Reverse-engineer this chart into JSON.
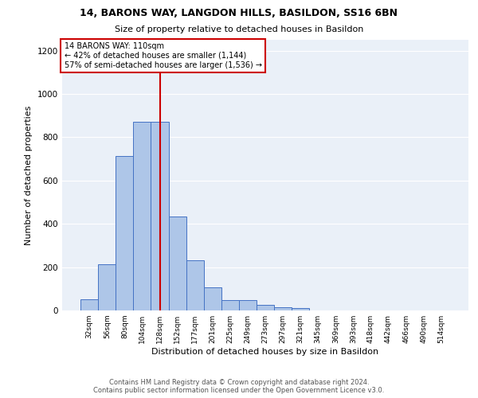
{
  "title1": "14, BARONS WAY, LANGDON HILLS, BASILDON, SS16 6BN",
  "title2": "Size of property relative to detached houses in Basildon",
  "xlabel": "Distribution of detached houses by size in Basildon",
  "ylabel": "Number of detached properties",
  "annotation_line1": "14 BARONS WAY: 110sqm",
  "annotation_line2": "← 42% of detached houses are smaller (1,144)",
  "annotation_line3": "57% of semi-detached houses are larger (1,536) →",
  "footer1": "Contains HM Land Registry data © Crown copyright and database right 2024.",
  "footer2": "Contains public sector information licensed under the Open Government Licence v3.0.",
  "categories": [
    "32sqm",
    "56sqm",
    "80sqm",
    "104sqm",
    "128sqm",
    "152sqm",
    "177sqm",
    "201sqm",
    "225sqm",
    "249sqm",
    "273sqm",
    "297sqm",
    "321sqm",
    "345sqm",
    "369sqm",
    "393sqm",
    "418sqm",
    "442sqm",
    "466sqm",
    "490sqm",
    "514sqm"
  ],
  "values": [
    50,
    215,
    715,
    870,
    870,
    435,
    230,
    105,
    47,
    47,
    25,
    15,
    10,
    0,
    0,
    0,
    0,
    0,
    0,
    0,
    0
  ],
  "bar_color": "#aec6e8",
  "bar_edge_color": "#4472c4",
  "vline_x": 4.0,
  "vline_color": "#cc0000",
  "annotation_box_color": "#ffffff",
  "annotation_box_edge": "#cc0000",
  "background_color": "#eaf0f8",
  "ylim": [
    0,
    1250
  ],
  "yticks": [
    0,
    200,
    400,
    600,
    800,
    1000,
    1200
  ]
}
